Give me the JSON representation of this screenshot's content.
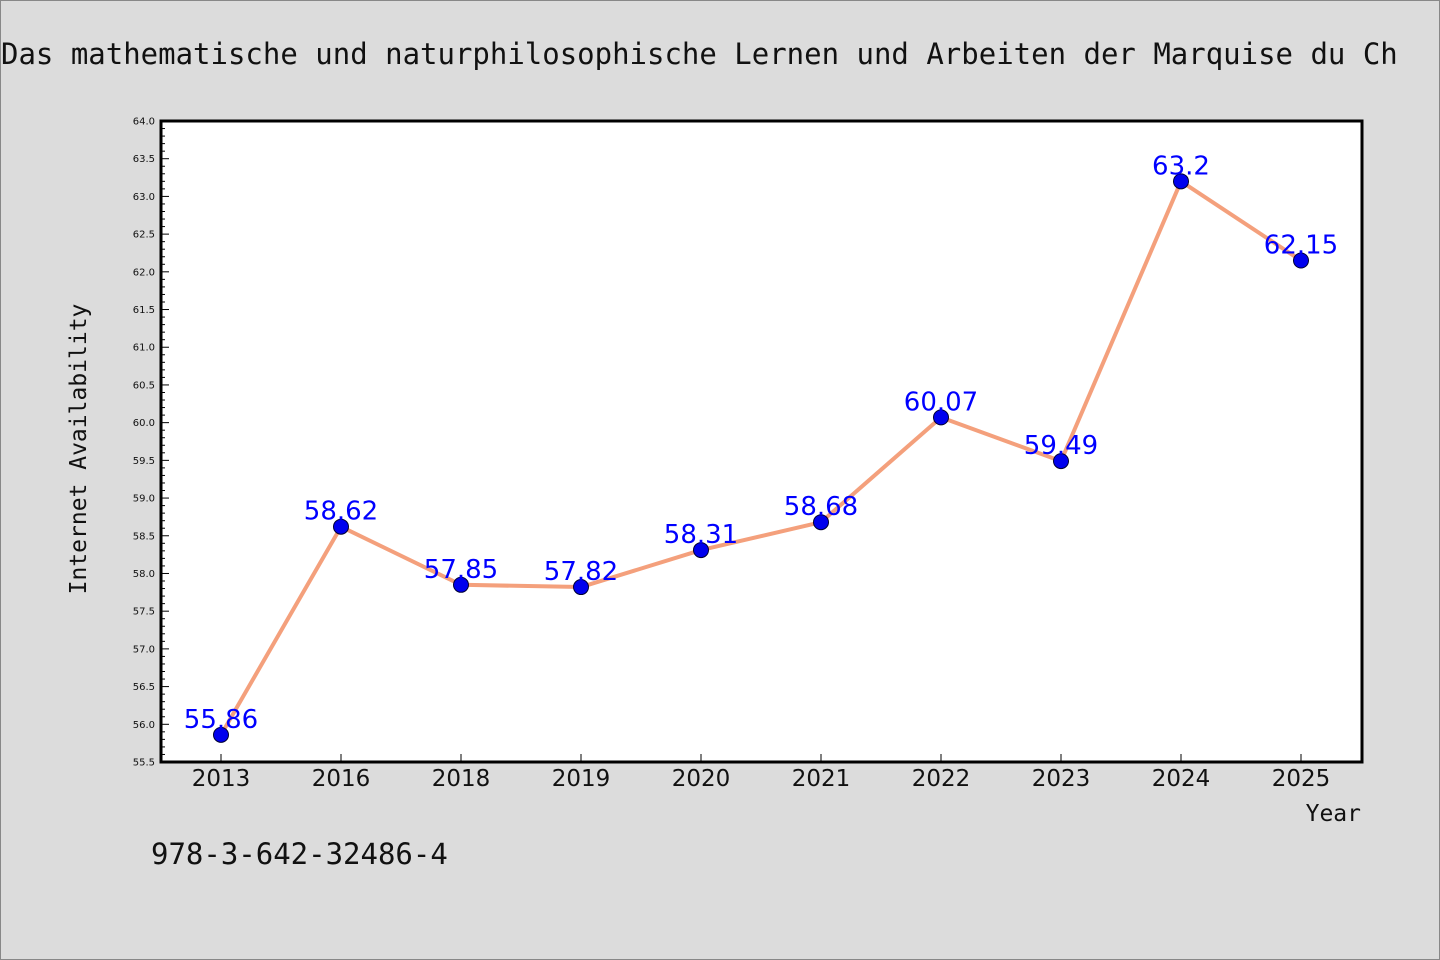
{
  "chart_data": {
    "type": "line",
    "title": "Das mathematische und naturphilosophische Lernen und Arbeiten der Marquise du Ch",
    "xlabel": "Year",
    "ylabel": "Internet Availability",
    "categories": [
      "2013",
      "2016",
      "2018",
      "2019",
      "2020",
      "2021",
      "2022",
      "2023",
      "2024",
      "2025"
    ],
    "series": [
      {
        "values": [
          55.86,
          58.62,
          57.85,
          57.82,
          58.31,
          58.68,
          60.07,
          59.49,
          63.2,
          62.15
        ],
        "labels": [
          "55.86",
          "58.62",
          "57.85",
          "57.82",
          "58.31",
          "58.68",
          "60.07",
          "59.49",
          "63.2",
          "62.15"
        ]
      }
    ],
    "ylim": [
      55.5,
      64.0
    ],
    "yticks": [
      "55.5",
      "56.0",
      "56.5",
      "57.0",
      "57.5",
      "58.0",
      "58.5",
      "59.0",
      "59.5",
      "60.0",
      "60.5",
      "61.0",
      "61.5",
      "62.0",
      "62.5",
      "63.0",
      "63.5",
      "64.0"
    ],
    "grid": false,
    "colors": {
      "line": "#f4a07c",
      "marker": "#0000ee",
      "label": "#0000ff",
      "background": "#dcdcdc",
      "plot_area": "#ffffff"
    }
  },
  "footer": {
    "isbn": "978-3-642-32486-4"
  }
}
